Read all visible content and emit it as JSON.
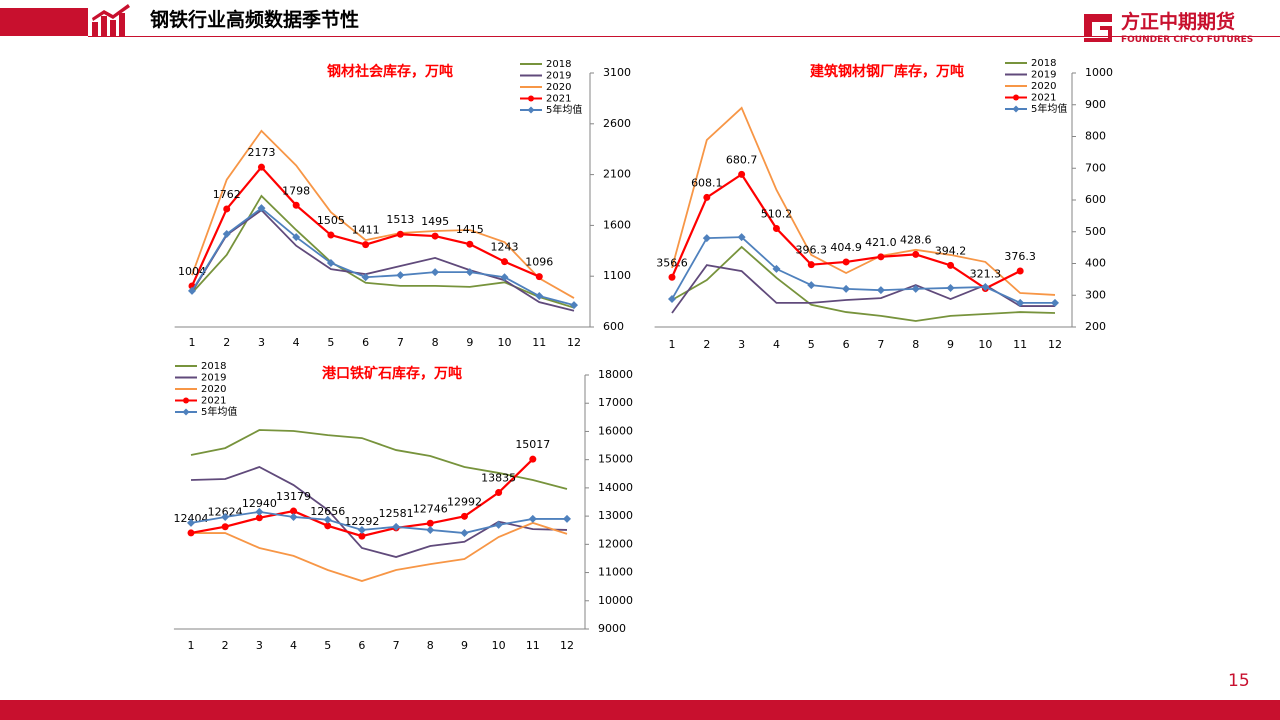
{
  "header": {
    "title": "钢铁行业高频数据季节性",
    "logo_cn": "方正中期期货",
    "logo_en": "FOUNDER CIFCO FUTURES"
  },
  "page_number": "15",
  "chart_data": [
    {
      "type": "line",
      "title": "钢材社会库存，万吨",
      "categories": [
        1,
        2,
        3,
        4,
        5,
        6,
        7,
        8,
        9,
        10,
        11,
        12
      ],
      "ylim": [
        600,
        3100
      ],
      "yticks": [
        600,
        1100,
        1600,
        2100,
        2600,
        3100
      ],
      "axis_side": "right",
      "legend": "upper right",
      "series": [
        {
          "name": "2018",
          "color": "#77933c",
          "values": [
            935,
            1310,
            1890,
            1555,
            1240,
            1035,
            1005,
            1005,
            995,
            1040,
            895,
            790
          ]
        },
        {
          "name": "2019",
          "color": "#604a7b",
          "values": [
            945,
            1505,
            1750,
            1400,
            1170,
            1120,
            1200,
            1280,
            1160,
            1060,
            845,
            760
          ]
        },
        {
          "name": "2020",
          "color": "#f79646",
          "values": [
            1110,
            2050,
            2530,
            2190,
            1730,
            1455,
            1525,
            1545,
            1555,
            1435,
            1080,
            885
          ]
        },
        {
          "name": "2021",
          "color": "#ff0000",
          "marker": "circle",
          "data_labels": true,
          "values": [
            1004,
            1762,
            2173,
            1798,
            1505,
            1411,
            1513,
            1495,
            1415,
            1243,
            1096,
            null
          ]
        },
        {
          "name": "5年均值",
          "color": "#4f81bd",
          "marker": "diamond",
          "values": [
            955,
            1515,
            1770,
            1485,
            1230,
            1090,
            1110,
            1140,
            1140,
            1090,
            905,
            815
          ]
        }
      ]
    },
    {
      "type": "line",
      "title": "建筑钢材钢厂库存，万吨",
      "categories": [
        1,
        2,
        3,
        4,
        5,
        6,
        7,
        8,
        9,
        10,
        11,
        12
      ],
      "ylim": [
        200,
        1000
      ],
      "yticks": [
        200,
        300,
        400,
        500,
        600,
        700,
        800,
        900,
        1000
      ],
      "axis_side": "right",
      "legend": "upper right",
      "series": [
        {
          "name": "2018",
          "color": "#77933c",
          "values": [
            285,
            348,
            452,
            355,
            270,
            247,
            235,
            219,
            235,
            241,
            247,
            244
          ]
        },
        {
          "name": "2019",
          "color": "#604a7b",
          "values": [
            244,
            395,
            376,
            276,
            276,
            285,
            291,
            332,
            288,
            332,
            266,
            266
          ]
        },
        {
          "name": "2020",
          "color": "#f79646",
          "values": [
            386,
            789,
            890,
            632,
            427,
            370,
            424,
            443,
            427,
            405,
            307,
            301
          ]
        },
        {
          "name": "2021",
          "color": "#ff0000",
          "marker": "circle",
          "data_labels": true,
          "values": [
            356.6,
            608.1,
            680.7,
            510.2,
            396.3,
            404.9,
            421,
            428.6,
            394.2,
            321.3,
            376.3,
            null
          ],
          "value_labels": [
            "356.6",
            "608.1",
            "680.7",
            "510.2",
            "396.3",
            "404.9",
            "421.0",
            "428.6",
            "394.2",
            "321.3",
            "376.3",
            null
          ]
        },
        {
          "name": "5年均值",
          "color": "#4f81bd",
          "marker": "diamond",
          "values": [
            288,
            480,
            483,
            383,
            332,
            320,
            316,
            320,
            323,
            326,
            276,
            276
          ]
        }
      ]
    },
    {
      "type": "line",
      "title": "港口铁矿石库存，万吨",
      "categories": [
        1,
        2,
        3,
        4,
        5,
        6,
        7,
        8,
        9,
        10,
        11,
        12
      ],
      "ylim": [
        9000,
        18000
      ],
      "yticks": [
        9000,
        10000,
        11000,
        12000,
        13000,
        14000,
        15000,
        16000,
        17000,
        18000
      ],
      "axis_side": "right",
      "legend": "upper left",
      "series": [
        {
          "name": "2018",
          "color": "#77933c",
          "values": [
            15165,
            15410,
            16050,
            16015,
            15870,
            15765,
            15340,
            15130,
            14740,
            14530,
            14280,
            13960
          ]
        },
        {
          "name": "2019",
          "color": "#604a7b",
          "values": [
            14280,
            14315,
            14740,
            14100,
            13220,
            11870,
            11550,
            11940,
            12090,
            12800,
            12540,
            12510
          ]
        },
        {
          "name": "2020",
          "color": "#f79646",
          "values": [
            12400,
            12400,
            11870,
            11590,
            11090,
            10700,
            11090,
            11300,
            11480,
            12260,
            12760,
            12370
          ]
        },
        {
          "name": "2021",
          "color": "#ff0000",
          "marker": "circle",
          "data_labels": true,
          "values": [
            12404,
            12624,
            12940,
            13179,
            12656,
            12292,
            12581,
            12746,
            12992,
            13835,
            15017,
            null
          ]
        },
        {
          "name": "5年均值",
          "color": "#4f81bd",
          "marker": "diamond",
          "values": [
            12760,
            12970,
            13150,
            12970,
            12870,
            12510,
            12620,
            12510,
            12400,
            12690,
            12900,
            12900
          ]
        }
      ]
    }
  ]
}
